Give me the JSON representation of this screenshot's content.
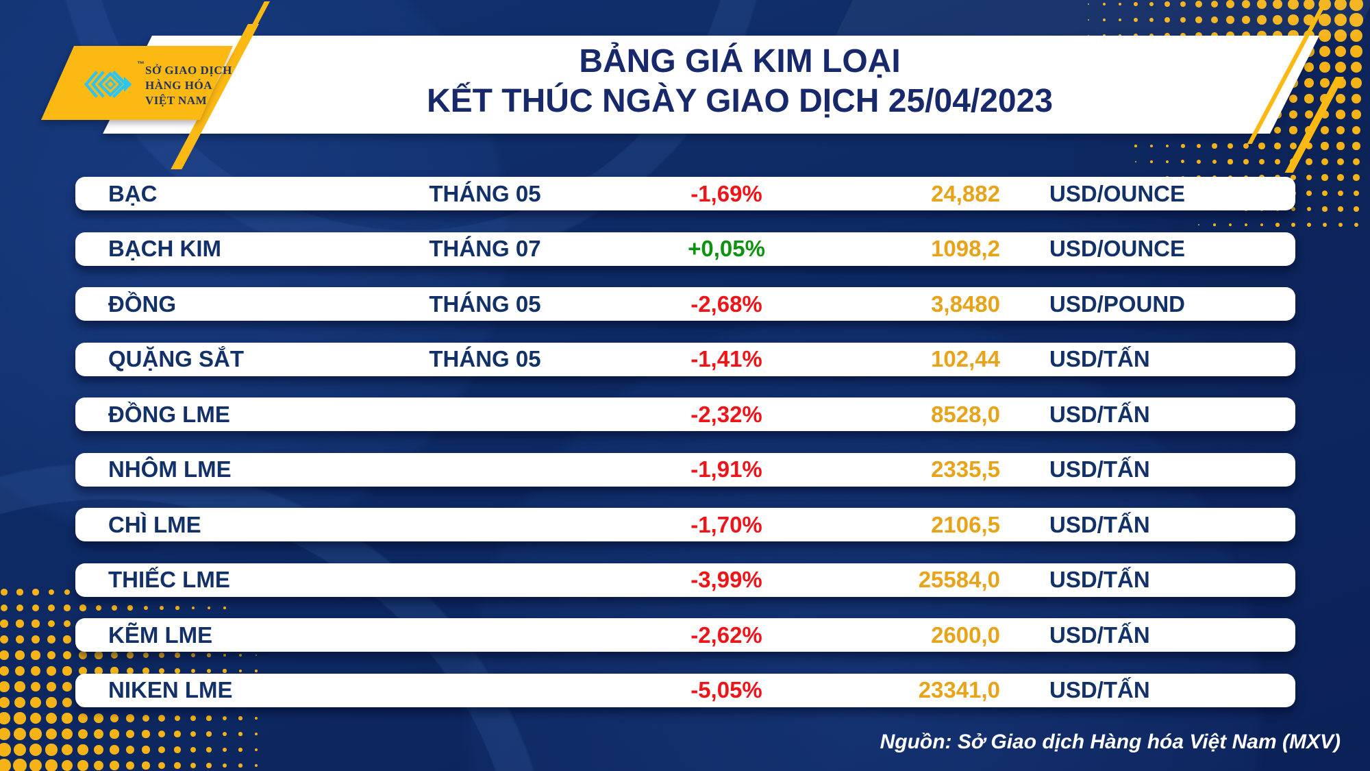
{
  "header": {
    "title_line1": "BẢNG GIÁ KIM LOẠI",
    "title_line2": "KẾT THÚC NGÀY GIAO DỊCH 25/04/2023",
    "logo": {
      "trademark": "™",
      "org_line1": "SỞ GIAO DỊCH",
      "org_line2": "HÀNG HÓA",
      "org_line3": "VIỆT NAM"
    }
  },
  "table": {
    "rows": [
      {
        "name": "BẠC",
        "month": "THÁNG 05",
        "change": "-1,69%",
        "direction": "down",
        "price": "24,882",
        "unit": "USD/OUNCE"
      },
      {
        "name": "BẠCH KIM",
        "month": "THÁNG 07",
        "change": "+0,05%",
        "direction": "up",
        "price": "1098,2",
        "unit": "USD/OUNCE"
      },
      {
        "name": "ĐỒNG",
        "month": "THÁNG 05",
        "change": "-2,68%",
        "direction": "down",
        "price": "3,8480",
        "unit": "USD/POUND"
      },
      {
        "name": "QUẶNG SẮT",
        "month": "THÁNG 05",
        "change": "-1,41%",
        "direction": "down",
        "price": "102,44",
        "unit": "USD/TẤN"
      },
      {
        "name": "ĐỒNG LME",
        "month": "",
        "change": "-2,32%",
        "direction": "down",
        "price": "8528,0",
        "unit": "USD/TẤN"
      },
      {
        "name": "NHÔM LME",
        "month": "",
        "change": "-1,91%",
        "direction": "down",
        "price": "2335,5",
        "unit": "USD/TẤN"
      },
      {
        "name": "CHÌ LME",
        "month": "",
        "change": "-1,70%",
        "direction": "down",
        "price": "2106,5",
        "unit": "USD/TẤN"
      },
      {
        "name": "THIẾC LME",
        "month": "",
        "change": "-3,99%",
        "direction": "down",
        "price": "25584,0",
        "unit": "USD/TẤN"
      },
      {
        "name": "KẼM LME",
        "month": "",
        "change": "-2,62%",
        "direction": "down",
        "price": "2600,0",
        "unit": "USD/TẤN"
      },
      {
        "name": "NIKEN LME",
        "month": "",
        "change": "-5,05%",
        "direction": "down",
        "price": "23341,0",
        "unit": "USD/TẤN"
      }
    ]
  },
  "footer": {
    "source": "Nguồn: Sở Giao dịch Hàng hóa Việt Nam (MXV)"
  },
  "colors": {
    "background_navy": "#0e2a64",
    "title_navy": "#17296a",
    "row_text_navy": "#123169",
    "negative_red": "#ee1418",
    "positive_green": "#0e9310",
    "price_gold": "#e7a41a",
    "accent_yellow": "#fdb913",
    "logo_cyan": "#2cc5f1",
    "row_white": "#ffffff"
  },
  "chart_data": {
    "type": "table",
    "title": "BẢNG GIÁ KIM LOẠI KẾT THÚC NGÀY GIAO DỊCH 25/04/2023",
    "rows": [
      [
        "BẠC",
        "THÁNG 05",
        "-1,69%",
        "24,882",
        "USD/OUNCE"
      ],
      [
        "BẠCH KIM",
        "THÁNG 07",
        "+0,05%",
        "1098,2",
        "USD/OUNCE"
      ],
      [
        "ĐỒNG",
        "THÁNG 05",
        "-2,68%",
        "3,8480",
        "USD/POUND"
      ],
      [
        "QUẶNG SẮT",
        "THÁNG 05",
        "-1,41%",
        "102,44",
        "USD/TẤN"
      ],
      [
        "ĐỒNG LME",
        "",
        "-2,32%",
        "8528,0",
        "USD/TẤN"
      ],
      [
        "NHÔM LME",
        "",
        "-1,91%",
        "2335,5",
        "USD/TẤN"
      ],
      [
        "CHÌ LME",
        "",
        "-1,70%",
        "2106,5",
        "USD/TẤN"
      ],
      [
        "THIẾC LME",
        "",
        "-3,99%",
        "25584,0",
        "USD/TẤN"
      ],
      [
        "KẼM LME",
        "",
        "-2,62%",
        "2600,0",
        "USD/TẤN"
      ],
      [
        "NIKEN LME",
        "",
        "-5,05%",
        "23341,0",
        "USD/TẤN"
      ]
    ],
    "source": "Nguồn: Sở Giao dịch Hàng hóa Việt Nam (MXV)"
  }
}
